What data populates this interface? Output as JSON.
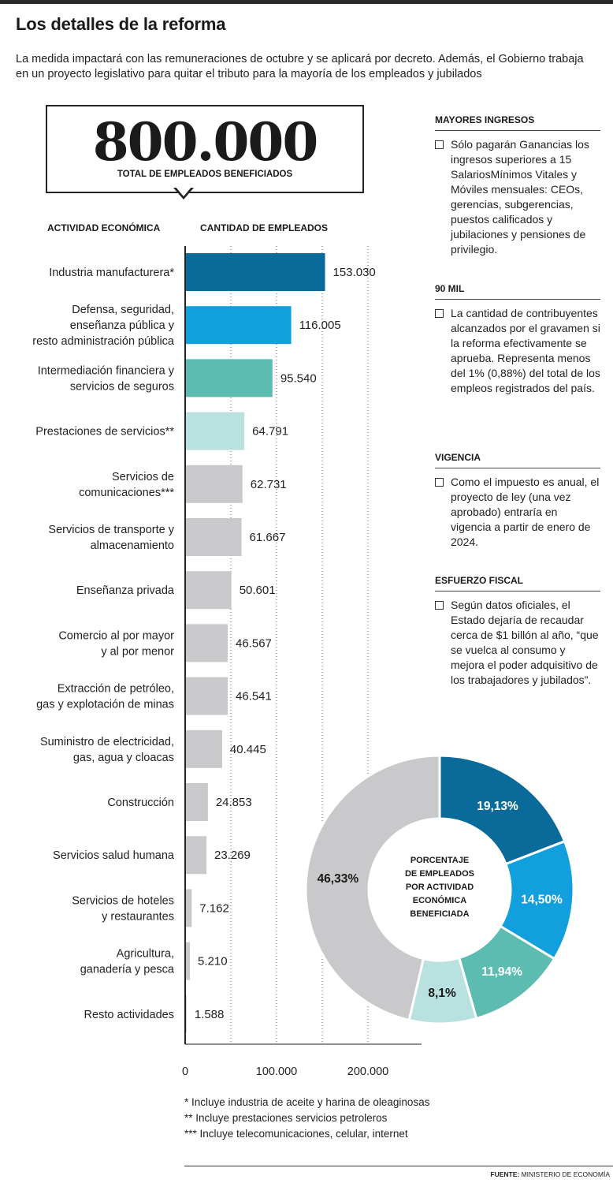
{
  "header": {
    "title": "Los detalles de la reforma",
    "subtitle": "La medida impactará con las remuneraciones de octubre y se aplicará por decreto. Además, el Gobierno trabaja en un proyecto legislativo para quitar el tributo para la mayoría de los empleados y jubilados"
  },
  "highlight": {
    "number": "800.000",
    "label": "TOTAL DE EMPLEADOS BENEFICIADOS"
  },
  "columns": {
    "left": "ACTIVIDAD ECONÓMICA",
    "right": "CANTIDAD DE EMPLEADOS"
  },
  "chart_data": [
    {
      "type": "bar",
      "orientation": "horizontal",
      "categories": [
        "Industria manufacturera*",
        "Defensa, seguridad,|enseñanza pública y|resto administración pública",
        "Intermediación financiera y|servicios de seguros",
        "Prestaciones de servicios**",
        "Servicios de|comunicaciones***",
        "Servicios de transporte y|almacenamiento",
        "Enseñanza privada",
        "Comercio al por mayor|y al por menor",
        "Extracción de petróleo,|gas y explotación de minas",
        "Suministro de electricidad,|gas, agua y cloacas",
        "Construcción",
        "Servicios salud humana",
        "Servicios de hoteles|y restaurantes",
        "Agricultura,|ganadería y pesca",
        "Resto actividades"
      ],
      "values": [
        153030,
        116005,
        95540,
        64791,
        62731,
        61667,
        50601,
        46567,
        46541,
        40445,
        24853,
        23269,
        7162,
        5210,
        1588
      ],
      "value_labels": [
        "153.030",
        "116.005",
        "95.540",
        "64.791",
        "62.731",
        "61.667",
        "50.601",
        "46.567",
        "46.541",
        "40.445",
        "24.853",
        "23.269",
        "7.162",
        "5.210",
        "1.588"
      ],
      "colors": [
        "#0a6a99",
        "#129fde",
        "#5cbcb2",
        "#b8e1df",
        "#c9c9cb",
        "#c9c9cb",
        "#c9c9cb",
        "#c9c9cb",
        "#c9c9cb",
        "#c9c9cb",
        "#c9c9cb",
        "#c9c9cb",
        "#c9c9cb",
        "#c9c9cb",
        "#c9c9cb"
      ],
      "xlim": [
        0,
        250000
      ],
      "xticks": [
        0,
        100000,
        200000
      ],
      "xtick_labels": [
        "0",
        "100.000",
        "200.000"
      ],
      "grid": true
    },
    {
      "type": "pie",
      "donut": true,
      "center_label": [
        "PORCENTAJE",
        "DE EMPLEADOS",
        "POR ACTIVIDAD",
        "ECONÓMICA",
        "BENEFICIADA"
      ],
      "values": [
        19.13,
        14.5,
        11.94,
        8.1,
        46.33
      ],
      "labels": [
        "19,13%",
        "14,50%",
        "11,94%",
        "8,1%",
        "46,33%"
      ],
      "colors": [
        "#0a6a99",
        "#129fde",
        "#5cbcb2",
        "#b8e1df",
        "#c9c9cb"
      ],
      "label_colors": [
        "#ffffff",
        "#ffffff",
        "#ffffff",
        "#1a1a1a",
        "#1a1a1a"
      ]
    }
  ],
  "footnotes": [
    "* Incluye industria de aceite y harina de oleaginosas",
    "** Incluye prestaciones servicios petroleros",
    "*** Incluye telecomunicaciones, celular, internet"
  ],
  "sidebar": [
    {
      "heading": "MAYORES INGRESOS",
      "text": "Sólo pagarán Ganancias los ingresos superiores a 15 SalariosMínimos Vitales y Móviles mensuales: CEOs, gerencias, subgerencias, puestos calificados y jubilaciones y pensiones de privilegio."
    },
    {
      "heading": "90 MIL",
      "text": "La cantidad de contribuyentes alcanzados por el gravamen si la reforma efectivamente se aprueba. Representa menos del 1% (0,88%) del total de los empleos registrados del país."
    },
    {
      "heading": "VIGENCIA",
      "text": "Como el impuesto es anual, el proyecto de ley (una vez aprobado) entraría en vigencia a partir de enero de 2024."
    },
    {
      "heading": "ESFUERZO FISCAL",
      "text": "Según datos oficiales, el Estado dejaría de recaudar cerca de $1 billón al año, “que se vuelca al consumo y mejora el poder adquisitivo de los trabajadores y jubilados”."
    }
  ],
  "source": {
    "label": "FUENTE:",
    "text": "MINISTERIO DE ECONOMÍA"
  }
}
